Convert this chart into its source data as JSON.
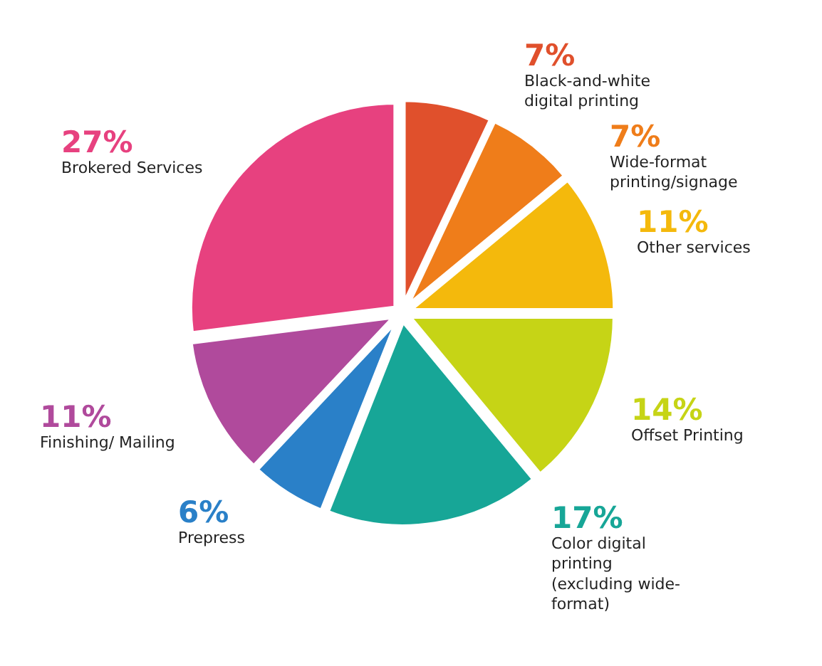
{
  "chart_data": {
    "type": "pie",
    "categories": [
      "Black-and-white digital printing",
      "Wide-format printing/signage",
      "Other services",
      "Offset Printing",
      "Color digital printing (excluding wide-format)",
      "Prepress",
      "Finishing/ Mailing",
      "Brokered Services"
    ],
    "values": [
      7,
      7,
      11,
      14,
      17,
      6,
      11,
      27
    ],
    "value_labels": [
      "7%",
      "7%",
      "11%",
      "14%",
      "17%",
      "6%",
      "11%",
      "27%"
    ],
    "colors": [
      "#e0502c",
      "#ef7d1a",
      "#f4b90c",
      "#c6d416",
      "#17a697",
      "#2a80c8",
      "#b04a9c",
      "#e7417f"
    ],
    "legend": false
  }
}
